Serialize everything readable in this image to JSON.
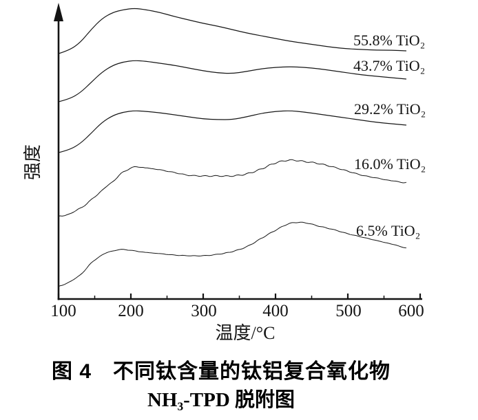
{
  "figure": {
    "y_axis_title": "强度",
    "x_axis_title": "温度/°C",
    "caption_line1": "图 4　不同钛含量的钛铝复合氧化物",
    "caption_line2": "NH₃-TPD 脱附图"
  },
  "chart_data": {
    "type": "line",
    "title": "图4 不同钛含量的钛铝复合氧化物 NH₃-TPD 脱附图",
    "xlabel": "温度/°C",
    "ylabel": "强度",
    "xlim": [
      100,
      600
    ],
    "ylim": [
      0,
      430
    ],
    "y_unit": "arbitrary intensity (curves vertically stacked with offsets)",
    "grid": false,
    "legend_position": "inline-right-of-each-curve",
    "x_ticks": [
      100,
      200,
      300,
      400,
      500,
      600
    ],
    "x_minor_ticks": [
      150,
      250,
      350,
      450,
      550
    ],
    "series": [
      {
        "name": "55.8% TiO₂",
        "noisy": false,
        "t": [
          100,
          115,
          130,
          145,
          160,
          175,
          190,
          205,
          220,
          240,
          260,
          280,
          300,
          320,
          340,
          360,
          380,
          400,
          420,
          440,
          460,
          480,
          500,
          520,
          540,
          560,
          581
        ],
        "v": [
          357,
          362,
          373,
          392,
          408,
          417,
          421,
          423,
          421,
          417,
          411,
          406,
          401,
          397,
          392,
          387,
          383,
          379,
          375,
          372,
          369,
          366,
          364,
          363,
          362,
          362,
          361
        ]
      },
      {
        "name": "43.7% TiO₂",
        "noisy": false,
        "t": [
          100,
          115,
          130,
          145,
          160,
          175,
          190,
          205,
          220,
          240,
          260,
          280,
          300,
          320,
          340,
          360,
          380,
          400,
          420,
          440,
          460,
          480,
          500,
          520,
          540,
          560,
          581
        ],
        "v": [
          287,
          291,
          300,
          315,
          330,
          340,
          345,
          347,
          346,
          343,
          340,
          336,
          332,
          329,
          328,
          331,
          335,
          337,
          338,
          337,
          335,
          332,
          329,
          326,
          324,
          322,
          320
        ]
      },
      {
        "name": "29.2% TiO₂",
        "noisy": false,
        "t": [
          100,
          115,
          130,
          145,
          160,
          175,
          190,
          205,
          220,
          240,
          260,
          280,
          300,
          320,
          340,
          360,
          380,
          400,
          420,
          440,
          460,
          480,
          500,
          520,
          540,
          560,
          581
        ],
        "v": [
          213,
          217,
          226,
          241,
          257,
          267,
          272,
          274,
          273,
          271,
          268,
          265,
          262,
          261,
          261,
          265,
          270,
          273,
          274,
          272,
          269,
          266,
          263,
          260,
          257,
          255,
          253
        ]
      },
      {
        "name": "16.0% TiO₂",
        "noisy": true,
        "t": [
          100,
          115,
          130,
          145,
          160,
          175,
          190,
          205,
          220,
          240,
          260,
          280,
          300,
          320,
          340,
          360,
          380,
          400,
          420,
          440,
          460,
          480,
          500,
          520,
          540,
          560,
          581
        ],
        "v": [
          120,
          124,
          132,
          144,
          158,
          171,
          185,
          192,
          191,
          188,
          184,
          180,
          179,
          179,
          179,
          182,
          189,
          198,
          202,
          200,
          197,
          192,
          186,
          180,
          176,
          172,
          169
        ]
      },
      {
        "name": "6.5% TiO₂",
        "noisy": true,
        "t": [
          100,
          115,
          130,
          145,
          160,
          175,
          190,
          205,
          220,
          240,
          260,
          280,
          300,
          320,
          340,
          360,
          380,
          400,
          420,
          440,
          460,
          480,
          500,
          520,
          540,
          560,
          581
        ],
        "v": [
          18,
          25,
          35,
          52,
          64,
          70,
          72,
          70,
          68,
          66,
          64,
          63,
          63,
          65,
          69,
          76,
          88,
          100,
          110,
          111,
          106,
          101,
          95,
          90,
          85,
          80,
          74
        ]
      }
    ]
  }
}
